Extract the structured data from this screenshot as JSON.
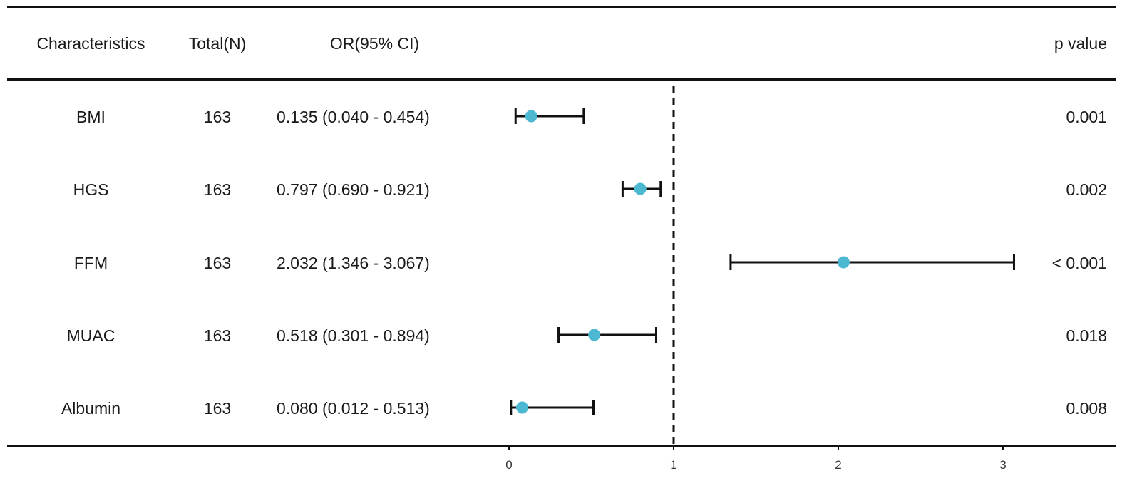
{
  "headers": {
    "characteristics": "Characteristics",
    "total": "Total(N)",
    "or_ci": "OR(95% CI)",
    "p_value": "p value"
  },
  "rows": [
    {
      "name": "BMI",
      "total": "163",
      "or_text": "0.135 (0.040 - 0.454)",
      "p": "0.001"
    },
    {
      "name": "HGS",
      "total": "163",
      "or_text": "0.797 (0.690 - 0.921)",
      "p": "0.002"
    },
    {
      "name": "FFM",
      "total": "163",
      "or_text": "2.032 (1.346 - 3.067)",
      "p": "< 0.001"
    },
    {
      "name": "MUAC",
      "total": "163",
      "or_text": "0.518 (0.301 - 0.894)",
      "p": "0.018"
    },
    {
      "name": "Albumin",
      "total": "163",
      "or_text": "0.080 (0.012 - 0.513)",
      "p": "0.008"
    }
  ],
  "chart_data": {
    "type": "scatter",
    "subtype": "forest",
    "categories": [
      "BMI",
      "HGS",
      "FFM",
      "MUAC",
      "Albumin"
    ],
    "series": [
      {
        "estimate": [
          0.135,
          0.797,
          2.032,
          0.518,
          0.08
        ],
        "lower": [
          0.04,
          0.69,
          1.346,
          0.301,
          0.012
        ],
        "upper": [
          0.454,
          0.921,
          3.067,
          0.894,
          0.513
        ]
      }
    ],
    "reference_line": 1,
    "xlim": [
      0,
      3.6
    ],
    "xticks": [
      "0",
      "1",
      "2",
      "3"
    ],
    "title": "",
    "xlabel": "",
    "ylabel": "",
    "grid": false,
    "colors": {
      "point": "#4cb8d1",
      "whisker": "#111111",
      "reference": "#111111"
    }
  }
}
